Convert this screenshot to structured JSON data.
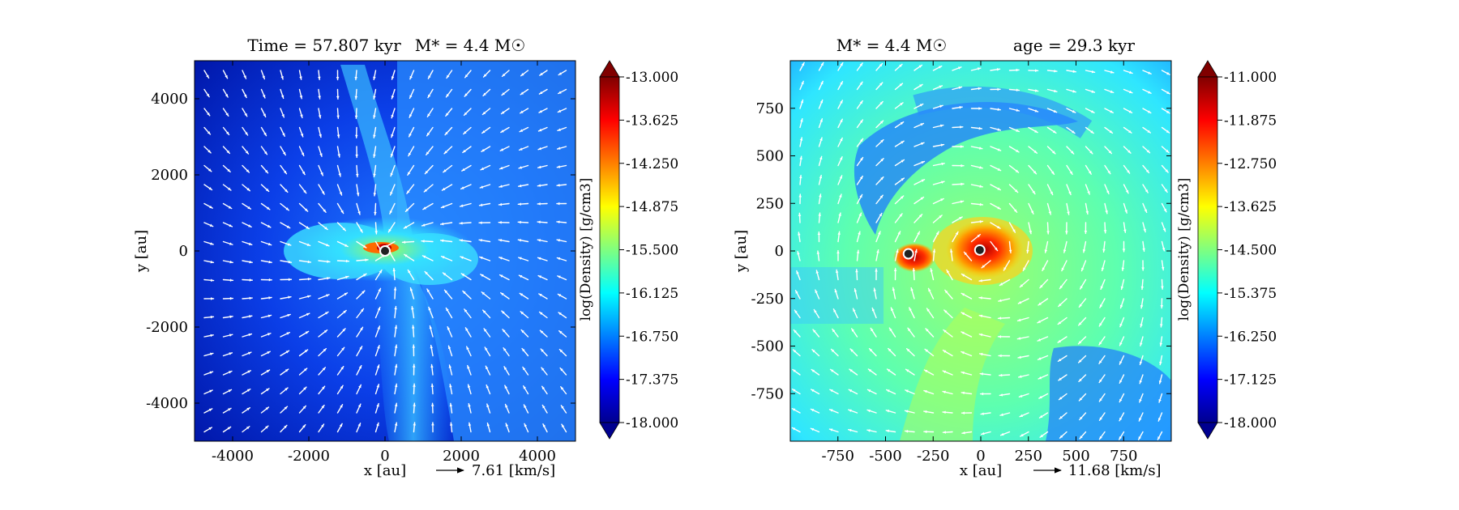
{
  "chart_data": [
    {
      "type": "heatmap",
      "title_left": "Time = 57.807 kyr",
      "title_right": "M* = 4.4 M☉",
      "xlabel": "x [au]",
      "ylabel": "y [au]",
      "xlim": [
        -5000,
        5000
      ],
      "ylim": [
        -5000,
        5000
      ],
      "x_ticks": [
        -4000,
        -2000,
        0,
        2000,
        4000
      ],
      "y_ticks": [
        4000,
        2000,
        0,
        -2000,
        -4000
      ],
      "colorbar": {
        "label": "log(Density) [g/cm3]",
        "range": [
          -18.0,
          -13.0
        ],
        "ticks": [
          "-13.000",
          "-13.625",
          "-14.250",
          "-14.875",
          "-15.500",
          "-16.125",
          "-16.750",
          "-17.375",
          "-18.000"
        ]
      },
      "vector_reference": "7.61 [km/s]",
      "sinks": [
        {
          "x": 0,
          "y": 0
        }
      ]
    },
    {
      "type": "heatmap",
      "title_left": "M* = 4.4 M☉",
      "title_right": "age = 29.3 kyr",
      "xlabel": "x [au]",
      "ylabel": "y [au]",
      "xlim": [
        -1000,
        1000
      ],
      "ylim": [
        -1000,
        1000
      ],
      "x_ticks": [
        -750,
        -500,
        -250,
        0,
        250,
        500,
        750
      ],
      "y_ticks": [
        750,
        500,
        250,
        0,
        -250,
        -500,
        -750
      ],
      "colorbar": {
        "label": "log(Density) [g/cm3]",
        "range": [
          -18.0,
          -11.0
        ],
        "ticks": [
          "-11.000",
          "-11.875",
          "-12.750",
          "-13.625",
          "-14.500",
          "-15.375",
          "-16.250",
          "-17.125",
          "-18.000"
        ]
      },
      "vector_reference": "11.68 [km/s]",
      "sinks": [
        {
          "x": -380,
          "y": -15
        },
        {
          "x": -5,
          "y": 5
        }
      ]
    }
  ]
}
